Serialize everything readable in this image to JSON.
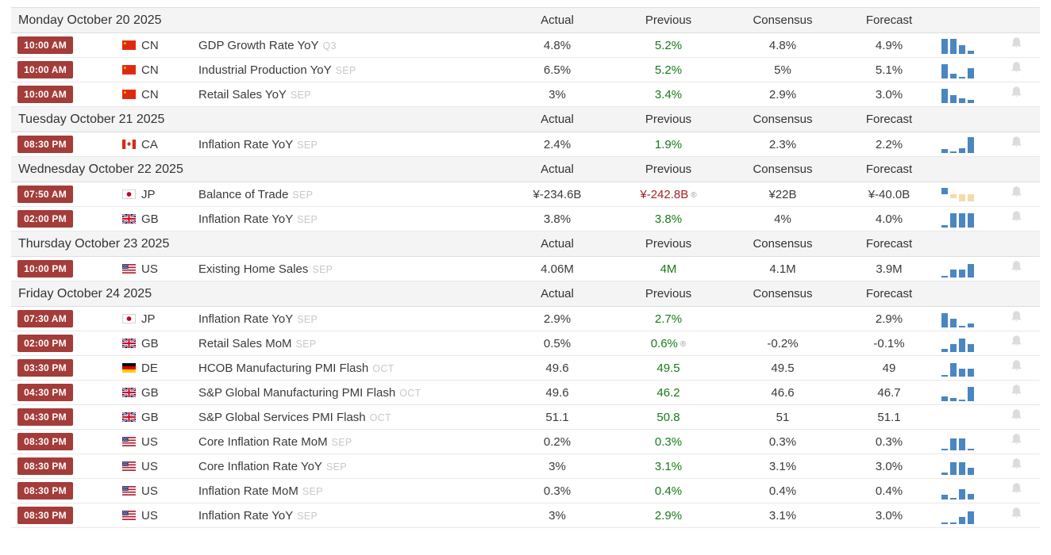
{
  "markers": {
    "revised": "®"
  },
  "colors": {
    "badge_red": "#a43c39",
    "positive_green": "#177a17",
    "negative_red": "#a32222",
    "bar_blue": "#4a86c1",
    "bar_negative_tan": "#f2dcab",
    "section_bg": "#f4f4f4",
    "bell_grey": "#dcdcdc",
    "ref_grey": "#c8c8c8"
  },
  "table": {
    "columns": [
      "Actual",
      "Previous",
      "Consensus",
      "Forecast"
    ],
    "sections": [
      {
        "date": "Monday October 20 2025",
        "events": [
          {
            "time": "10:00 AM",
            "country": "CN",
            "event": "GDP Growth Rate YoY",
            "ref": "Q3",
            "actual": "4.8%",
            "previous": "5.2%",
            "previous_tone": "positive",
            "revised": false,
            "consensus": "4.8%",
            "forecast": "4.9%",
            "spark": [
              0.95,
              0.95,
              0.55,
              0.2
            ]
          },
          {
            "time": "10:00 AM",
            "country": "CN",
            "event": "Industrial Production YoY",
            "ref": "SEP",
            "actual": "6.5%",
            "previous": "5.2%",
            "previous_tone": "positive",
            "revised": false,
            "consensus": "5%",
            "forecast": "5.1%",
            "spark": [
              0.9,
              0.3,
              0.12,
              0.65
            ]
          },
          {
            "time": "10:00 AM",
            "country": "CN",
            "event": "Retail Sales YoY",
            "ref": "SEP",
            "actual": "3%",
            "previous": "3.4%",
            "previous_tone": "positive",
            "revised": false,
            "consensus": "2.9%",
            "forecast": "3.0%",
            "spark": [
              0.9,
              0.5,
              0.3,
              0.2
            ]
          }
        ]
      },
      {
        "date": "Tuesday October 21 2025",
        "events": [
          {
            "time": "08:30 PM",
            "country": "CA",
            "event": "Inflation Rate YoY",
            "ref": "SEP",
            "actual": "2.4%",
            "previous": "1.9%",
            "previous_tone": "positive",
            "revised": false,
            "consensus": "2.3%",
            "forecast": "2.2%",
            "spark": [
              0.25,
              0.1,
              0.3,
              1.0
            ]
          }
        ]
      },
      {
        "date": "Wednesday October 22 2025",
        "events": [
          {
            "time": "07:50 AM",
            "country": "JP",
            "event": "Balance of Trade",
            "ref": "SEP",
            "actual": "¥-234.6B",
            "previous": "¥-242.8B",
            "previous_tone": "negative",
            "revised": true,
            "consensus": "¥22B",
            "forecast": "¥-40.0B",
            "spark": [
              0.8,
              -0.5,
              -0.9,
              -0.9
            ]
          },
          {
            "time": "02:00 PM",
            "country": "GB",
            "event": "Inflation Rate YoY",
            "ref": "SEP",
            "actual": "3.8%",
            "previous": "3.8%",
            "previous_tone": "positive",
            "revised": false,
            "consensus": "4%",
            "forecast": "4.0%",
            "spark": [
              0.15,
              0.9,
              0.9,
              0.9
            ]
          }
        ]
      },
      {
        "date": "Thursday October 23 2025",
        "events": [
          {
            "time": "10:00 PM",
            "country": "US",
            "event": "Existing Home Sales",
            "ref": "SEP",
            "actual": "4.06M",
            "previous": "4M",
            "previous_tone": "positive",
            "revised": false,
            "consensus": "4.1M",
            "forecast": "3.9M",
            "spark": [
              0.1,
              0.5,
              0.5,
              0.85
            ]
          }
        ]
      },
      {
        "date": "Friday October 24 2025",
        "events": [
          {
            "time": "07:30 AM",
            "country": "JP",
            "event": "Inflation Rate YoY",
            "ref": "SEP",
            "actual": "2.9%",
            "previous": "2.7%",
            "previous_tone": "positive",
            "revised": false,
            "consensus": "",
            "forecast": "2.9%",
            "spark": [
              0.9,
              0.55,
              0.1,
              0.25
            ]
          },
          {
            "time": "02:00 PM",
            "country": "GB",
            "event": "Retail Sales MoM",
            "ref": "SEP",
            "actual": "0.5%",
            "previous": "0.6%",
            "previous_tone": "positive",
            "revised": true,
            "consensus": "-0.2%",
            "forecast": "-0.1%",
            "spark": [
              0.2,
              0.5,
              0.85,
              0.5
            ]
          },
          {
            "time": "03:30 PM",
            "country": "DE",
            "event": "HCOB Manufacturing PMI Flash",
            "ref": "OCT",
            "actual": "49.6",
            "previous": "49.5",
            "previous_tone": "positive",
            "revised": false,
            "consensus": "49.5",
            "forecast": "49",
            "spark": [
              0.1,
              0.85,
              0.5,
              0.5
            ]
          },
          {
            "time": "04:30 PM",
            "country": "GB",
            "event": "S&P Global Manufacturing PMI Flash",
            "ref": "OCT",
            "actual": "49.6",
            "previous": "46.2",
            "previous_tone": "positive",
            "revised": false,
            "consensus": "46.6",
            "forecast": "46.7",
            "spark": [
              0.3,
              0.2,
              0.1,
              0.9
            ]
          },
          {
            "time": "04:30 PM",
            "country": "GB",
            "event": "S&P Global Services PMI Flash",
            "ref": "OCT",
            "actual": "51.1",
            "previous": "50.8",
            "previous_tone": "positive",
            "revised": false,
            "consensus": "51",
            "forecast": "51.1",
            "spark": []
          },
          {
            "time": "08:30 PM",
            "country": "US",
            "event": "Core Inflation Rate MoM",
            "ref": "SEP",
            "actual": "0.2%",
            "previous": "0.3%",
            "previous_tone": "positive",
            "revised": false,
            "consensus": "0.3%",
            "forecast": "0.3%",
            "spark": [
              0.1,
              0.75,
              0.75,
              0.1
            ]
          },
          {
            "time": "08:30 PM",
            "country": "US",
            "event": "Core Inflation Rate YoY",
            "ref": "SEP",
            "actual": "3%",
            "previous": "3.1%",
            "previous_tone": "positive",
            "revised": false,
            "consensus": "3.1%",
            "forecast": "3.0%",
            "spark": [
              0.15,
              0.8,
              0.8,
              0.45
            ]
          },
          {
            "time": "08:30 PM",
            "country": "US",
            "event": "Inflation Rate MoM",
            "ref": "SEP",
            "actual": "0.3%",
            "previous": "0.4%",
            "previous_tone": "positive",
            "revised": false,
            "consensus": "0.4%",
            "forecast": "0.4%",
            "spark": [
              0.3,
              0.1,
              0.65,
              0.35
            ]
          },
          {
            "time": "08:30 PM",
            "country": "US",
            "event": "Inflation Rate YoY",
            "ref": "SEP",
            "actual": "3%",
            "previous": "2.9%",
            "previous_tone": "positive",
            "revised": false,
            "consensus": "3.1%",
            "forecast": "3.0%",
            "spark": [
              0.1,
              0.1,
              0.45,
              0.8
            ]
          }
        ]
      }
    ]
  }
}
